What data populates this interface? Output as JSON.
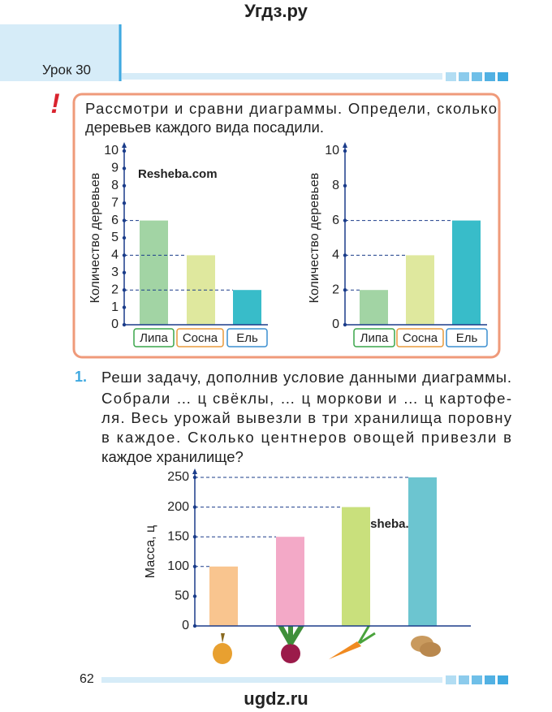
{
  "header": {
    "site": "Угдз.ру",
    "lesson": "Урок 30"
  },
  "task_intro": {
    "lines": [
      "Рассмотри и сравни диаграммы. Определи, сколько",
      "деревьев каждого вида посадили."
    ]
  },
  "task_1": {
    "number": "1.",
    "lines": [
      "Реши задачу, дополнив условие данными диаграммы.",
      "Собрали … ц свёклы, … ц моркови и … ц картофе-",
      "ля. Весь урожай вывезли в три хранилища поровну",
      "в каждое. Сколько центнеров овощей привезли в",
      "каждое хранилище?"
    ]
  },
  "watermarks": [
    "Resheba.com",
    "Resheba.com"
  ],
  "footer": {
    "page": "62",
    "site": "ugdz.ru"
  },
  "chart_data": [
    {
      "type": "bar",
      "y_label": "Количество деревьев",
      "categories": [
        "Липа",
        "Сосна",
        "Ель"
      ],
      "values": [
        6,
        4,
        2
      ],
      "colors": [
        "#a2d4a4",
        "#dfe89e",
        "#38bcc9"
      ],
      "category_border_colors": [
        "#3aa54a",
        "#e89a3c",
        "#3b8fd0"
      ],
      "ylim": [
        0,
        10
      ],
      "yticks": [
        0,
        1,
        2,
        3,
        4,
        5,
        6,
        7,
        8,
        9,
        10
      ]
    },
    {
      "type": "bar",
      "y_label": "Количество деревьев",
      "categories": [
        "Липа",
        "Сосна",
        "Ель"
      ],
      "values": [
        2,
        4,
        6
      ],
      "colors": [
        "#a2d4a4",
        "#dfe89e",
        "#38bcc9"
      ],
      "category_border_colors": [
        "#3aa54a",
        "#e89a3c",
        "#3b8fd0"
      ],
      "ylim": [
        0,
        10
      ],
      "yticks": [
        0,
        2,
        4,
        6,
        8,
        10
      ]
    },
    {
      "type": "bar",
      "y_label": "Масса, ц",
      "values": [
        100,
        150,
        200,
        250
      ],
      "colors": [
        "#f9c58f",
        "#f3a9c7",
        "#c9e07c",
        "#6cc5d0"
      ],
      "ylim": [
        0,
        250
      ],
      "yticks": [
        0,
        50,
        100,
        150,
        200,
        250
      ]
    }
  ]
}
